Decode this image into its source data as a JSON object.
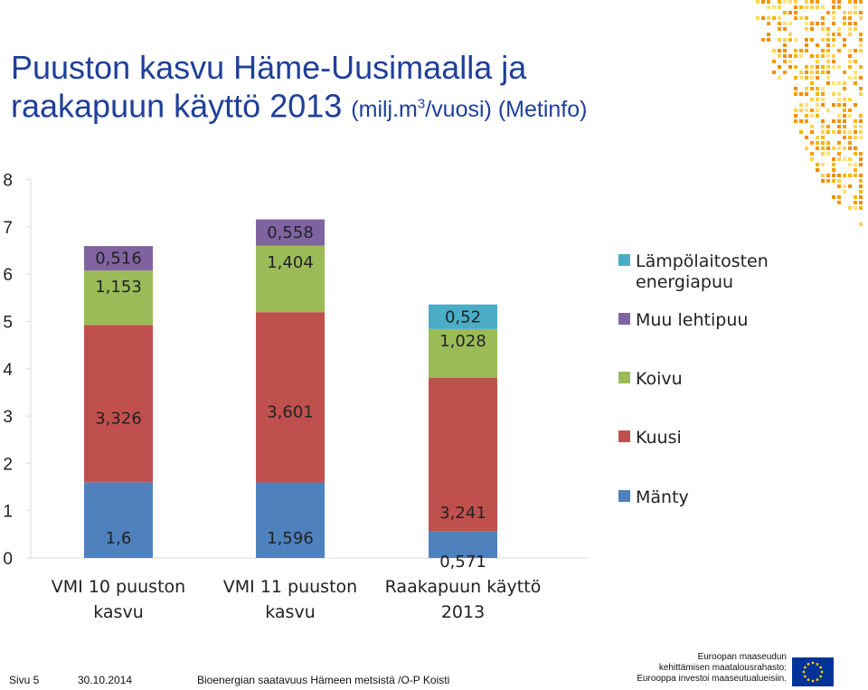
{
  "header": {
    "title_main_line1": "Puuston kasvu Häme-Uusimaalla ja",
    "title_main_line2": "raakapuun käyttö 2013",
    "title_unit_pre": "(milj.m",
    "title_unit_sup": "3",
    "title_unit_post": "/vuosi) (Metinfo)"
  },
  "chart_data": {
    "type": "bar",
    "stacked": true,
    "categories": [
      [
        "VMI 10 puuston",
        "kasvu"
      ],
      [
        "VMI 11 puuston",
        "kasvu"
      ],
      [
        "Raakapuun käyttö",
        "2013"
      ]
    ],
    "series": [
      {
        "name": "Mänty",
        "color": "#4f81bd",
        "values": [
          1.6,
          1.596,
          0.571
        ],
        "labels": [
          "1,6",
          "1,596",
          "0,571"
        ]
      },
      {
        "name": "Kuusi",
        "color": "#c0504d",
        "values": [
          3.326,
          3.601,
          3.241
        ],
        "labels": [
          "3,326",
          "3,601",
          "3,241"
        ]
      },
      {
        "name": "Koivu",
        "color": "#9bbb59",
        "values": [
          1.153,
          1.404,
          1.028
        ],
        "labels": [
          "1,153",
          "1,404",
          "1,028"
        ]
      },
      {
        "name": "Muu lehtipuu",
        "color": "#8064a2",
        "values": [
          0.516,
          0.558,
          0
        ],
        "labels": [
          "0,516",
          "0,558",
          ""
        ]
      },
      {
        "name": "Lämpölaitosten energiapuu",
        "legend_lines": [
          "Lämpölaitosten",
          "energiapuu"
        ],
        "color": "#4bacc6",
        "values": [
          0,
          0,
          0.52
        ],
        "labels": [
          "",
          "",
          "0,52"
        ]
      }
    ],
    "yticks": [
      "0",
      "1",
      "2",
      "3",
      "4",
      "5",
      "6",
      "7",
      "8"
    ],
    "ylim": [
      0,
      8
    ],
    "legend_position": "right"
  },
  "footer": {
    "page": "Sivu 5",
    "date": "30.10.2014",
    "project": "Bioenergian saatavuus Hämeen metsistä /O-P Koisti",
    "eu_line1": "Euroopan maaseudun",
    "eu_line2": "kehittämisen maatalousrahasto:",
    "eu_line3": "Eurooppa investoi maaseutualueisiin."
  }
}
